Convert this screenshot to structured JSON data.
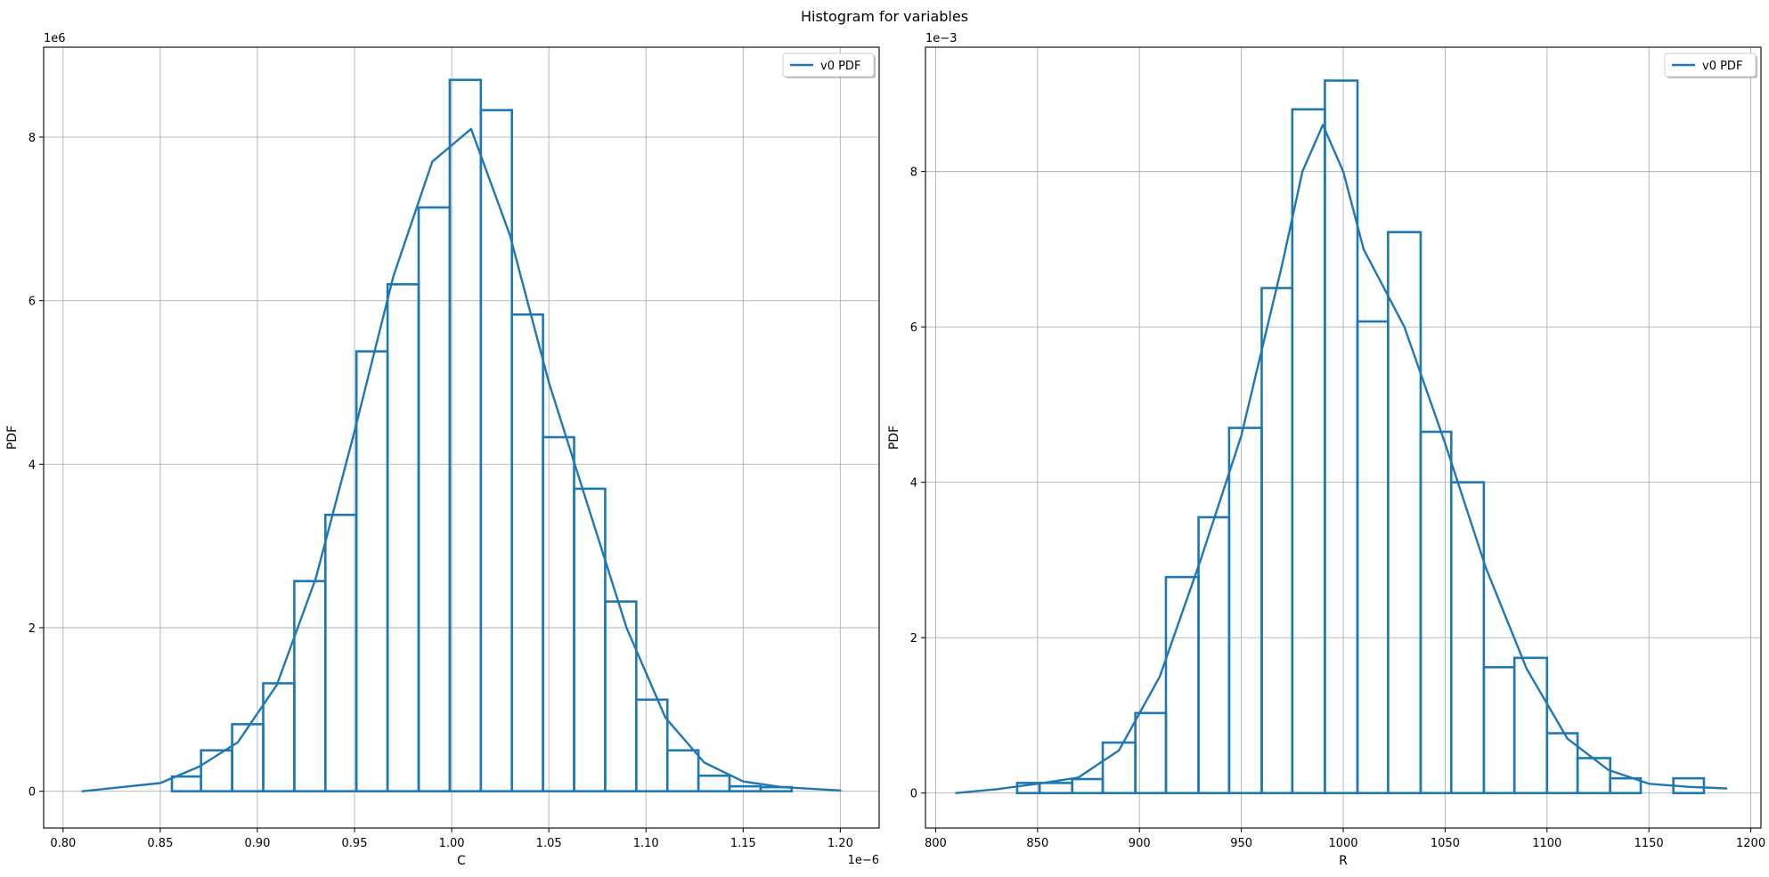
{
  "figure": {
    "title": "Histogram for variables"
  },
  "chart_data": [
    {
      "type": "histogram",
      "xlabel": "C",
      "ylabel": "PDF",
      "x_offset_text": "1e−6",
      "y_offset_text": "1e6",
      "xlim": [
        0.79,
        1.22
      ],
      "ylim": [
        -0.45,
        9.1
      ],
      "xticks": [
        0.8,
        0.85,
        0.9,
        0.95,
        1.0,
        1.05,
        1.1,
        1.15,
        1.2
      ],
      "xtick_labels": [
        "0.80",
        "0.85",
        "0.90",
        "0.95",
        "1.00",
        "1.05",
        "1.10",
        "1.15",
        "1.20"
      ],
      "yticks": [
        0,
        2,
        4,
        6,
        8
      ],
      "ytick_labels": [
        "0",
        "2",
        "4",
        "6",
        "8"
      ],
      "grid": true,
      "legend": {
        "label": "v0 PDF",
        "placement": "top-right"
      },
      "color": "#1f77b4",
      "series": [
        {
          "name": "v0 PDF",
          "kind": "step-histogram",
          "bin_edges": [
            0.847,
            0.856,
            0.871,
            0.887,
            0.903,
            0.919,
            0.935,
            0.951,
            0.967,
            0.983,
            0.999,
            1.015,
            1.031,
            1.047,
            1.063,
            1.079,
            1.095,
            1.111,
            1.127,
            1.143,
            1.159,
            1.175,
            1.18
          ],
          "values": [
            0.0,
            0.18,
            0.5,
            0.82,
            1.32,
            2.57,
            3.38,
            5.38,
            6.2,
            7.14,
            8.7,
            8.33,
            5.83,
            4.33,
            3.7,
            2.32,
            1.12,
            0.5,
            0.19,
            0.06,
            0.05,
            0.0
          ]
        },
        {
          "name": "v0 PDF",
          "kind": "pdf-curve",
          "x": [
            0.81,
            0.85,
            0.87,
            0.89,
            0.91,
            0.93,
            0.95,
            0.97,
            0.99,
            1.01,
            1.03,
            1.05,
            1.07,
            1.09,
            1.11,
            1.13,
            1.15,
            1.17,
            1.2
          ],
          "y": [
            0.0,
            0.1,
            0.3,
            0.6,
            1.3,
            2.6,
            4.4,
            6.3,
            7.7,
            8.1,
            6.8,
            5.0,
            3.5,
            2.0,
            0.9,
            0.35,
            0.12,
            0.05,
            0.01
          ]
        }
      ]
    },
    {
      "type": "histogram",
      "xlabel": "R",
      "ylabel": "PDF",
      "x_offset_text": "",
      "y_offset_text": "1e−3",
      "xlim": [
        795,
        1205
      ],
      "ylim": [
        -0.45,
        9.6
      ],
      "xticks": [
        800,
        850,
        900,
        950,
        1000,
        1050,
        1100,
        1150,
        1200
      ],
      "xtick_labels": [
        "800",
        "850",
        "900",
        "950",
        "1000",
        "1050",
        "1100",
        "1150",
        "1200"
      ],
      "yticks": [
        0,
        2,
        4,
        6,
        8
      ],
      "ytick_labels": [
        "0",
        "2",
        "4",
        "6",
        "8"
      ],
      "grid": true,
      "legend": {
        "label": "v0 PDF",
        "placement": "top-right"
      },
      "color": "#1f77b4",
      "series": [
        {
          "name": "v0 PDF",
          "kind": "step-histogram",
          "bin_edges": [
            830,
            840,
            851,
            867,
            882,
            898,
            913,
            929,
            944,
            960,
            975,
            991,
            1007,
            1022,
            1038,
            1053,
            1069,
            1084,
            1100,
            1115,
            1131,
            1146,
            1162,
            1177,
            1185
          ],
          "values": [
            0.0,
            0.13,
            0.13,
            0.18,
            0.65,
            1.03,
            2.78,
            3.55,
            4.7,
            6.5,
            8.8,
            9.17,
            6.07,
            7.22,
            4.65,
            4.0,
            1.62,
            1.74,
            0.77,
            0.45,
            0.19,
            0.0,
            0.19,
            0.0
          ]
        },
        {
          "name": "v0 PDF",
          "kind": "pdf-curve",
          "x": [
            810,
            830,
            850,
            870,
            890,
            910,
            930,
            950,
            970,
            980,
            990,
            1000,
            1010,
            1030,
            1050,
            1070,
            1090,
            1110,
            1130,
            1150,
            1170,
            1188
          ],
          "y": [
            0.0,
            0.05,
            0.12,
            0.2,
            0.55,
            1.5,
            3.0,
            4.6,
            6.8,
            8.0,
            8.6,
            8.0,
            7.0,
            6.0,
            4.5,
            2.9,
            1.6,
            0.7,
            0.3,
            0.12,
            0.08,
            0.06
          ]
        }
      ]
    }
  ]
}
